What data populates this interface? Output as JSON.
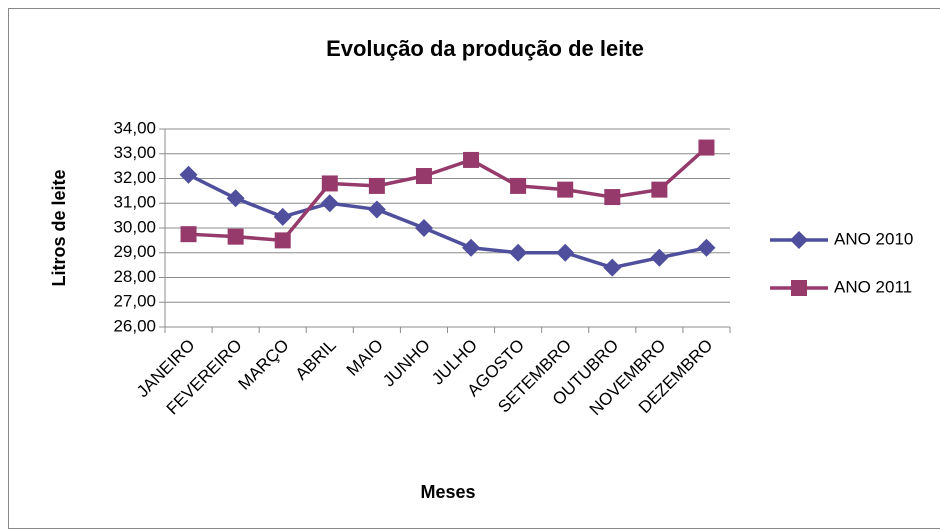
{
  "chart_data": {
    "type": "line",
    "title": "Evolução da produção de leite",
    "x_label": "Meses",
    "y_label": "Litros de leite",
    "categories": [
      "JANEIRO",
      "FEVEREIRO",
      "MARÇO",
      "ABRIL",
      "MAIO",
      "JUNHO",
      "JULHO",
      "AGOSTO",
      "SETEMBRO",
      "OUTUBRO",
      "NOVEMBRO",
      "DEZEMBRO"
    ],
    "series": [
      {
        "name": "ANO 2010",
        "color": "#4f4f9e",
        "marker": "diamond",
        "values": [
          32.15,
          31.2,
          30.45,
          31.0,
          30.75,
          30.0,
          29.2,
          29.0,
          29.0,
          28.4,
          28.8,
          29.2
        ]
      },
      {
        "name": "ANO 2011",
        "color": "#953a6b",
        "marker": "square",
        "values": [
          29.75,
          29.65,
          29.5,
          31.8,
          31.7,
          32.1,
          32.75,
          31.7,
          31.55,
          31.25,
          31.55,
          33.25
        ]
      }
    ],
    "ylim": [
      26,
      34
    ],
    "yticks": [
      {
        "value": 26,
        "label": "26,00"
      },
      {
        "value": 27,
        "label": "27,00"
      },
      {
        "value": 28,
        "label": "28,00"
      },
      {
        "value": 29,
        "label": "29,00"
      },
      {
        "value": 30,
        "label": "30,00"
      },
      {
        "value": 31,
        "label": "31,00"
      },
      {
        "value": 32,
        "label": "32,00"
      },
      {
        "value": 33,
        "label": "33,00"
      },
      {
        "value": 34,
        "label": "34,00"
      }
    ],
    "grid": true,
    "legend": "right"
  }
}
